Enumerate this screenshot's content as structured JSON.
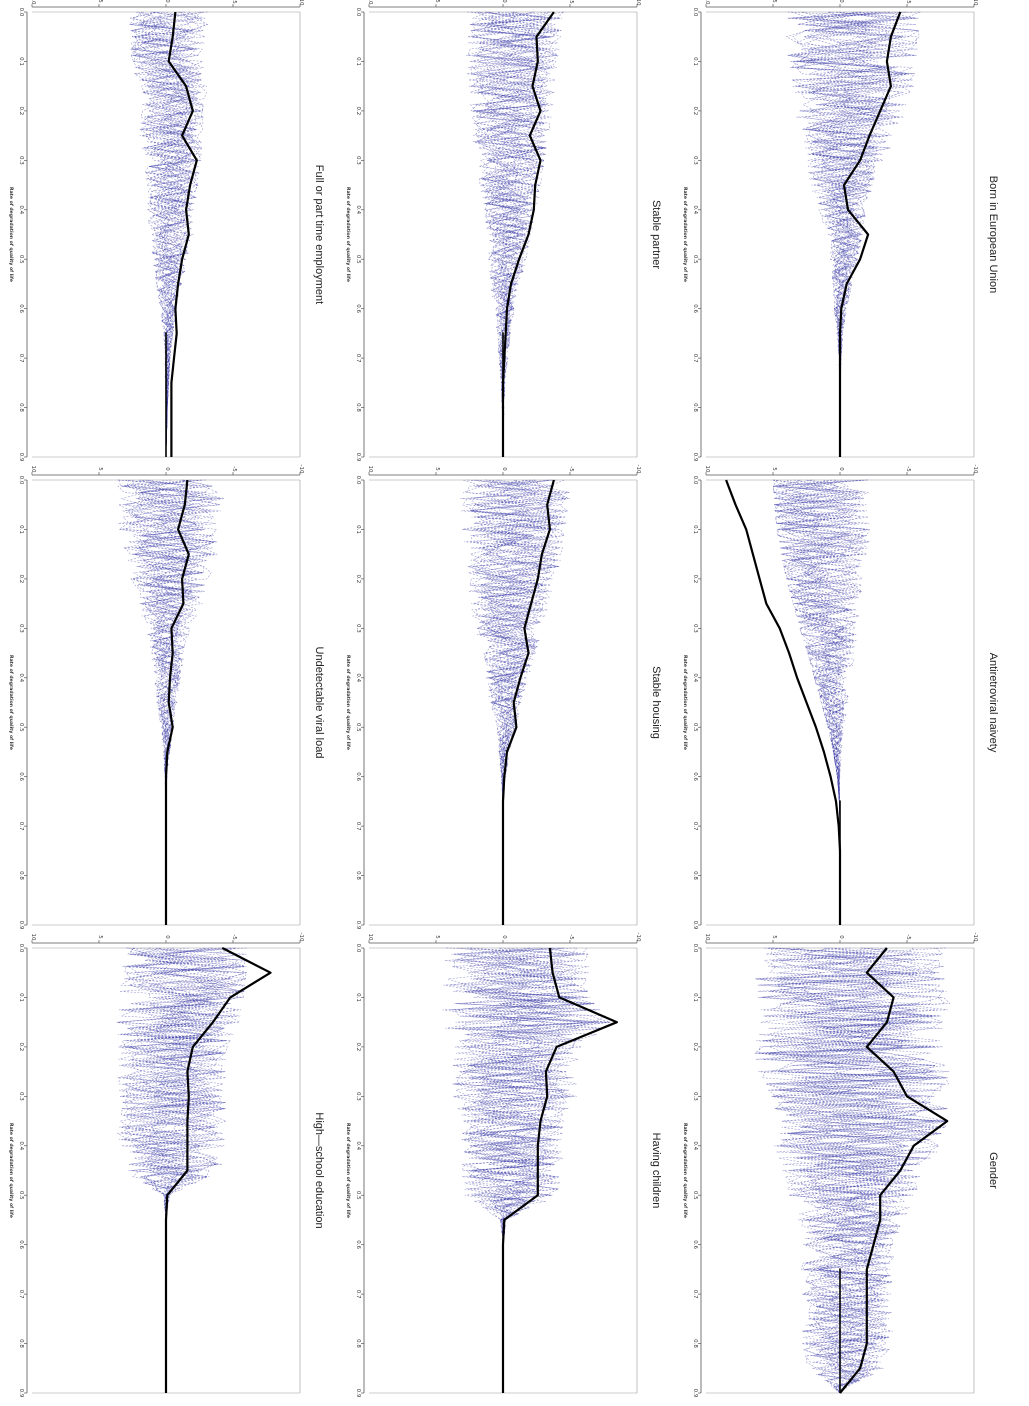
{
  "figure": {
    "rows": 3,
    "cols": 3,
    "colors": {
      "main": "#000000",
      "bootstrap": "#3c3ca8",
      "frame": "#9a9a9a"
    }
  },
  "chart_data": [
    {
      "type": "line",
      "title": "Full or part time employment",
      "xlabel": "Rate of degradation of quality of life",
      "ylabel": "",
      "xlim": [
        0,
        0.9
      ],
      "ylim": [
        -10,
        10
      ],
      "x_ticks": [
        "0.0",
        "0.1",
        "0.2",
        "0.3",
        "0.4",
        "0.5",
        "0.6",
        "0.7",
        "0.8",
        "0.9"
      ],
      "y_ticks": [
        "10",
        "5",
        "0",
        "-5",
        "-10"
      ],
      "series": [
        {
          "values": [
            -0.7,
            -0.5,
            -0.2,
            -1.5,
            -2.0,
            -1.2,
            -2.3,
            -1.8,
            -1.5,
            -1.7,
            -1.2,
            -0.9,
            -0.7,
            -0.8,
            -0.6,
            -0.4,
            -0.4,
            -0.4,
            -0.4
          ]
        },
        {
          "values": [
            3.5,
            3.4,
            3.3,
            3.2,
            3.0,
            2.8,
            2.6,
            2.4,
            2.2,
            2.0,
            1.6,
            1.2,
            0.8,
            0.5,
            0.3,
            0.2,
            0.1,
            0.05,
            0.0
          ]
        },
        {
          "values": [
            -3.5,
            -3.4,
            -3.3,
            -3.2,
            -3.0,
            -2.8,
            -2.6,
            -2.4,
            -2.2,
            -2.0,
            -1.6,
            -1.2,
            -0.8,
            -0.5,
            -0.3,
            -0.2,
            -0.1,
            -0.05,
            0.0
          ]
        }
      ]
    },
    {
      "type": "line",
      "title": "Stable partner",
      "xlabel": "Rate of degradation of quality of life",
      "ylabel": "",
      "xlim": [
        0,
        0.9
      ],
      "ylim": [
        -10,
        10
      ],
      "x_ticks": [
        "0.0",
        "0.1",
        "0.2",
        "0.3",
        "0.4",
        "0.5",
        "0.6",
        "0.7",
        "0.8",
        "0.9"
      ],
      "y_ticks": [
        "10",
        "5",
        "0",
        "-5",
        "-10"
      ],
      "series": [
        {
          "values": [
            -3.8,
            -2.5,
            -2.6,
            -2.2,
            -2.8,
            -2.0,
            -2.8,
            -2.4,
            -2.3,
            -1.9,
            -1.2,
            -0.6,
            -0.3,
            -0.2,
            -0.1,
            0.0,
            0.0,
            0.0,
            0.0
          ]
        },
        {
          "values": [
            4.5,
            4.3,
            4.1,
            3.9,
            3.7,
            3.4,
            3.1,
            2.8,
            2.5,
            2.1,
            1.7,
            1.3,
            0.9,
            0.6,
            0.4,
            0.2,
            0.1,
            0.05,
            0.0
          ]
        },
        {
          "values": [
            -4.5,
            -4.3,
            -4.1,
            -3.9,
            -3.7,
            -3.4,
            -3.1,
            -2.8,
            -2.5,
            -2.1,
            -1.7,
            -1.3,
            -0.9,
            -0.6,
            -0.4,
            -0.2,
            -0.1,
            -0.05,
            0.0
          ]
        }
      ]
    },
    {
      "type": "line",
      "title": "Born in European Union",
      "xlabel": "Rate of degradation of quality of life",
      "ylabel": "",
      "xlim": [
        0,
        0.9
      ],
      "ylim": [
        -10,
        10
      ],
      "x_ticks": [
        "0.0",
        "0.1",
        "0.2",
        "0.3",
        "0.4",
        "0.5",
        "0.6",
        "0.7",
        "0.8",
        "0.9"
      ],
      "y_ticks": [
        "10",
        "5",
        "0",
        "-5",
        "-10"
      ],
      "series": [
        {
          "values": [
            -4.5,
            -3.8,
            -3.5,
            -3.8,
            -3.0,
            -2.2,
            -1.5,
            -0.3,
            -0.6,
            -2.1,
            -1.5,
            -0.5,
            -0.1,
            0.0,
            0.0,
            0.0,
            0.0,
            0.0,
            0.0
          ]
        },
        {
          "values": [
            6.0,
            5.9,
            5.7,
            5.5,
            5.0,
            4.2,
            3.5,
            2.8,
            2.2,
            1.7,
            1.3,
            0.9,
            0.6,
            0.3,
            0.1,
            0.05,
            0.0,
            0.0,
            0.0
          ]
        },
        {
          "values": [
            -6.0,
            -5.9,
            -5.7,
            -5.5,
            -5.0,
            -4.2,
            -3.5,
            -2.8,
            -2.2,
            -1.7,
            -1.3,
            -0.9,
            -0.6,
            -0.3,
            -0.1,
            -0.05,
            0.0,
            0.0,
            0.0
          ]
        }
      ]
    },
    {
      "type": "line",
      "title": "Undetectable viral load",
      "xlabel": "Rate of degradation of quality of life",
      "ylabel": "",
      "xlim": [
        0,
        0.9
      ],
      "ylim": [
        -10,
        10
      ],
      "x_ticks": [
        "0.0",
        "0.1",
        "0.2",
        "0.3",
        "0.4",
        "0.5",
        "0.6",
        "0.7",
        "0.8",
        "0.9"
      ],
      "y_ticks": [
        "10",
        "5",
        "0",
        "-5",
        "-10"
      ],
      "series": [
        {
          "values": [
            -1.6,
            -1.4,
            -0.9,
            -1.7,
            -1.2,
            -1.3,
            -0.4,
            -0.5,
            -0.3,
            -0.2,
            -0.5,
            -0.1,
            0.0,
            0.0,
            0.0,
            0.0,
            0.0,
            0.0,
            0.0
          ]
        },
        {
          "values": [
            4.8,
            4.7,
            4.5,
            4.2,
            3.6,
            2.8,
            2.0,
            1.5,
            1.2,
            0.9,
            0.6,
            0.3,
            0.1,
            0.05,
            0.0,
            0.0,
            0.0,
            0.0,
            0.0
          ]
        },
        {
          "values": [
            -4.8,
            -4.7,
            -4.5,
            -4.2,
            -3.6,
            -2.8,
            -2.0,
            -1.5,
            -1.2,
            -0.9,
            -0.6,
            -0.3,
            -0.1,
            -0.05,
            0.0,
            0.0,
            0.0,
            0.0,
            0.0
          ]
        }
      ]
    },
    {
      "type": "line",
      "title": "Stable housing",
      "xlabel": "Rate of degradation of quality of life",
      "ylabel": "",
      "xlim": [
        0,
        0.9
      ],
      "ylim": [
        -10,
        10
      ],
      "x_ticks": [
        "0.0",
        "0.1",
        "0.2",
        "0.3",
        "0.4",
        "0.5",
        "0.6",
        "0.7",
        "0.8",
        "0.9"
      ],
      "y_ticks": [
        "10",
        "5",
        "0",
        "-5",
        "-10"
      ],
      "series": [
        {
          "values": [
            -3.8,
            -3.3,
            -3.5,
            -2.9,
            -2.6,
            -2.1,
            -1.6,
            -1.9,
            -1.3,
            -0.8,
            -1.0,
            -0.3,
            -0.1,
            0.0,
            0.0,
            0.0,
            0.0,
            0.0,
            0.0
          ]
        },
        {
          "values": [
            5.0,
            4.9,
            4.7,
            4.4,
            4.0,
            3.5,
            3.0,
            2.4,
            1.9,
            1.4,
            0.9,
            0.5,
            0.2,
            0.05,
            0.0,
            0.0,
            0.0,
            0.0,
            0.0
          ]
        },
        {
          "values": [
            -5.0,
            -4.9,
            -4.7,
            -4.4,
            -4.0,
            -3.5,
            -3.0,
            -2.4,
            -1.9,
            -1.4,
            -0.9,
            -0.5,
            -0.2,
            -0.05,
            0.0,
            0.0,
            0.0,
            0.0,
            0.0
          ]
        }
      ]
    },
    {
      "type": "line",
      "title": "Antiretroviral naivety",
      "xlabel": "Rate of degradation of quality of life",
      "ylabel": "",
      "xlim": [
        0,
        0.9
      ],
      "ylim": [
        -10,
        10
      ],
      "x_ticks": [
        "0.0",
        "0.1",
        "0.2",
        "0.3",
        "0.4",
        "0.5",
        "0.6",
        "0.7",
        "0.8",
        "0.9"
      ],
      "y_ticks": [
        "10",
        "5",
        "0",
        "-5",
        "-10"
      ],
      "series": [
        {
          "values": [
            8.5,
            7.8,
            7.0,
            6.5,
            6.0,
            5.5,
            4.5,
            3.8,
            3.2,
            2.5,
            1.8,
            1.2,
            0.7,
            0.3,
            0.1,
            0.0,
            0.0,
            0.0,
            0.0
          ]
        },
        {
          "values": [
            5.0,
            4.9,
            4.7,
            4.4,
            4.0,
            3.5,
            3.0,
            2.4,
            1.9,
            1.4,
            0.9,
            0.5,
            0.2,
            0.05,
            0.0,
            0.0,
            0.0,
            0.0,
            0.0
          ]
        },
        {
          "values": [
            -5.0,
            -4.9,
            -4.7,
            -4.4,
            -4.0,
            -3.5,
            -3.0,
            -2.4,
            -1.9,
            -1.4,
            -0.9,
            -0.5,
            -0.2,
            -0.05,
            0.0,
            0.0,
            0.0,
            0.0,
            0.0
          ]
        }
      ]
    },
    {
      "type": "line",
      "title": "High—school education",
      "xlabel": "Rate of degradation of quality of life",
      "ylabel": "",
      "xlim": [
        0,
        0.9
      ],
      "ylim": [
        -10,
        10
      ],
      "x_ticks": [
        "0.0",
        "0.1",
        "0.2",
        "0.3",
        "0.4",
        "0.5",
        "0.6",
        "0.7",
        "0.8",
        "0.9"
      ],
      "y_ticks": [
        "10",
        "5",
        "0",
        "-5",
        "-10"
      ],
      "series": [
        {
          "values": [
            -4.2,
            -7.8,
            -4.8,
            -3.5,
            -2.0,
            -1.6,
            -1.7,
            -1.6,
            -1.6,
            -1.6,
            -0.1,
            0.0,
            0.0,
            0.0,
            0.0,
            0.0,
            0.0,
            0.0,
            0.0
          ]
        },
        {
          "values": [
            6.0,
            6.0,
            5.8,
            5.5,
            4.8,
            4.8,
            4.8,
            4.8,
            4.8,
            4.5,
            0.3,
            0.0,
            0.0,
            0.0,
            0.0,
            0.0,
            0.0,
            0.0,
            0.0
          ]
        },
        {
          "values": [
            -6.0,
            -6.0,
            -5.8,
            -5.5,
            -4.8,
            -4.8,
            -4.8,
            -4.8,
            -4.8,
            -4.5,
            -0.3,
            0.0,
            0.0,
            0.0,
            0.0,
            0.0,
            0.0,
            0.0,
            0.0
          ]
        }
      ]
    },
    {
      "type": "line",
      "title": "Having children",
      "xlabel": "Rate of degradation of quality of life",
      "ylabel": "",
      "xlim": [
        0,
        0.9
      ],
      "ylim": [
        -10,
        10
      ],
      "x_ticks": [
        "0.0",
        "0.1",
        "0.2",
        "0.3",
        "0.4",
        "0.5",
        "0.6",
        "0.7",
        "0.8",
        "0.9"
      ],
      "y_ticks": [
        "10",
        "5",
        "0",
        "-5",
        "-10"
      ],
      "series": [
        {
          "values": [
            -3.5,
            -3.7,
            -4.2,
            -8.5,
            -4.0,
            -3.2,
            -3.3,
            -2.8,
            -2.6,
            -2.6,
            -2.6,
            -0.1,
            0.0,
            0.0,
            0.0,
            0.0,
            0.0,
            0.0,
            0.0
          ]
        },
        {
          "values": [
            6.5,
            6.5,
            6.5,
            8.0,
            6.0,
            5.5,
            5.5,
            4.5,
            4.5,
            4.5,
            4.2,
            0.3,
            0.0,
            0.0,
            0.0,
            0.0,
            0.0,
            0.0,
            0.0
          ]
        },
        {
          "values": [
            -6.5,
            -6.5,
            -6.5,
            -8.0,
            -6.0,
            -5.5,
            -5.5,
            -4.5,
            -4.5,
            -4.5,
            -4.2,
            -0.3,
            0.0,
            0.0,
            0.0,
            0.0,
            0.0,
            0.0,
            0.0
          ]
        }
      ]
    },
    {
      "type": "line",
      "title": "Gender",
      "xlabel": "Rate of degradation of quality of life",
      "ylabel": "",
      "xlim": [
        0,
        0.9
      ],
      "ylim": [
        -10,
        10
      ],
      "x_ticks": [
        "0.0",
        "0.1",
        "0.2",
        "0.3",
        "0.4",
        "0.5",
        "0.6",
        "0.7",
        "0.8",
        "0.9"
      ],
      "y_ticks": [
        "10",
        "5",
        "0",
        "-5",
        "-10"
      ],
      "series": [
        {
          "values": [
            -3.5,
            -2.0,
            -4.0,
            -3.5,
            -2.0,
            -4.0,
            -5.0,
            -8.0,
            -5.5,
            -4.5,
            -3.0,
            -3.0,
            -2.5,
            -2.0,
            -2.0,
            -2.0,
            -2.0,
            -1.5,
            0.0
          ]
        },
        {
          "values": [
            8.5,
            8.5,
            8.5,
            8.5,
            8.5,
            8.5,
            8.0,
            8.0,
            7.5,
            6.5,
            5.5,
            5.0,
            4.0,
            4.0,
            4.0,
            4.0,
            4.0,
            3.5,
            0.0
          ]
        },
        {
          "values": [
            -8.5,
            -8.5,
            -8.5,
            -8.5,
            -8.5,
            -8.5,
            -8.0,
            -8.0,
            -7.5,
            -6.5,
            -5.5,
            -5.0,
            -4.0,
            -4.0,
            -4.0,
            -4.0,
            -4.0,
            -3.5,
            0.0
          ]
        }
      ]
    }
  ]
}
